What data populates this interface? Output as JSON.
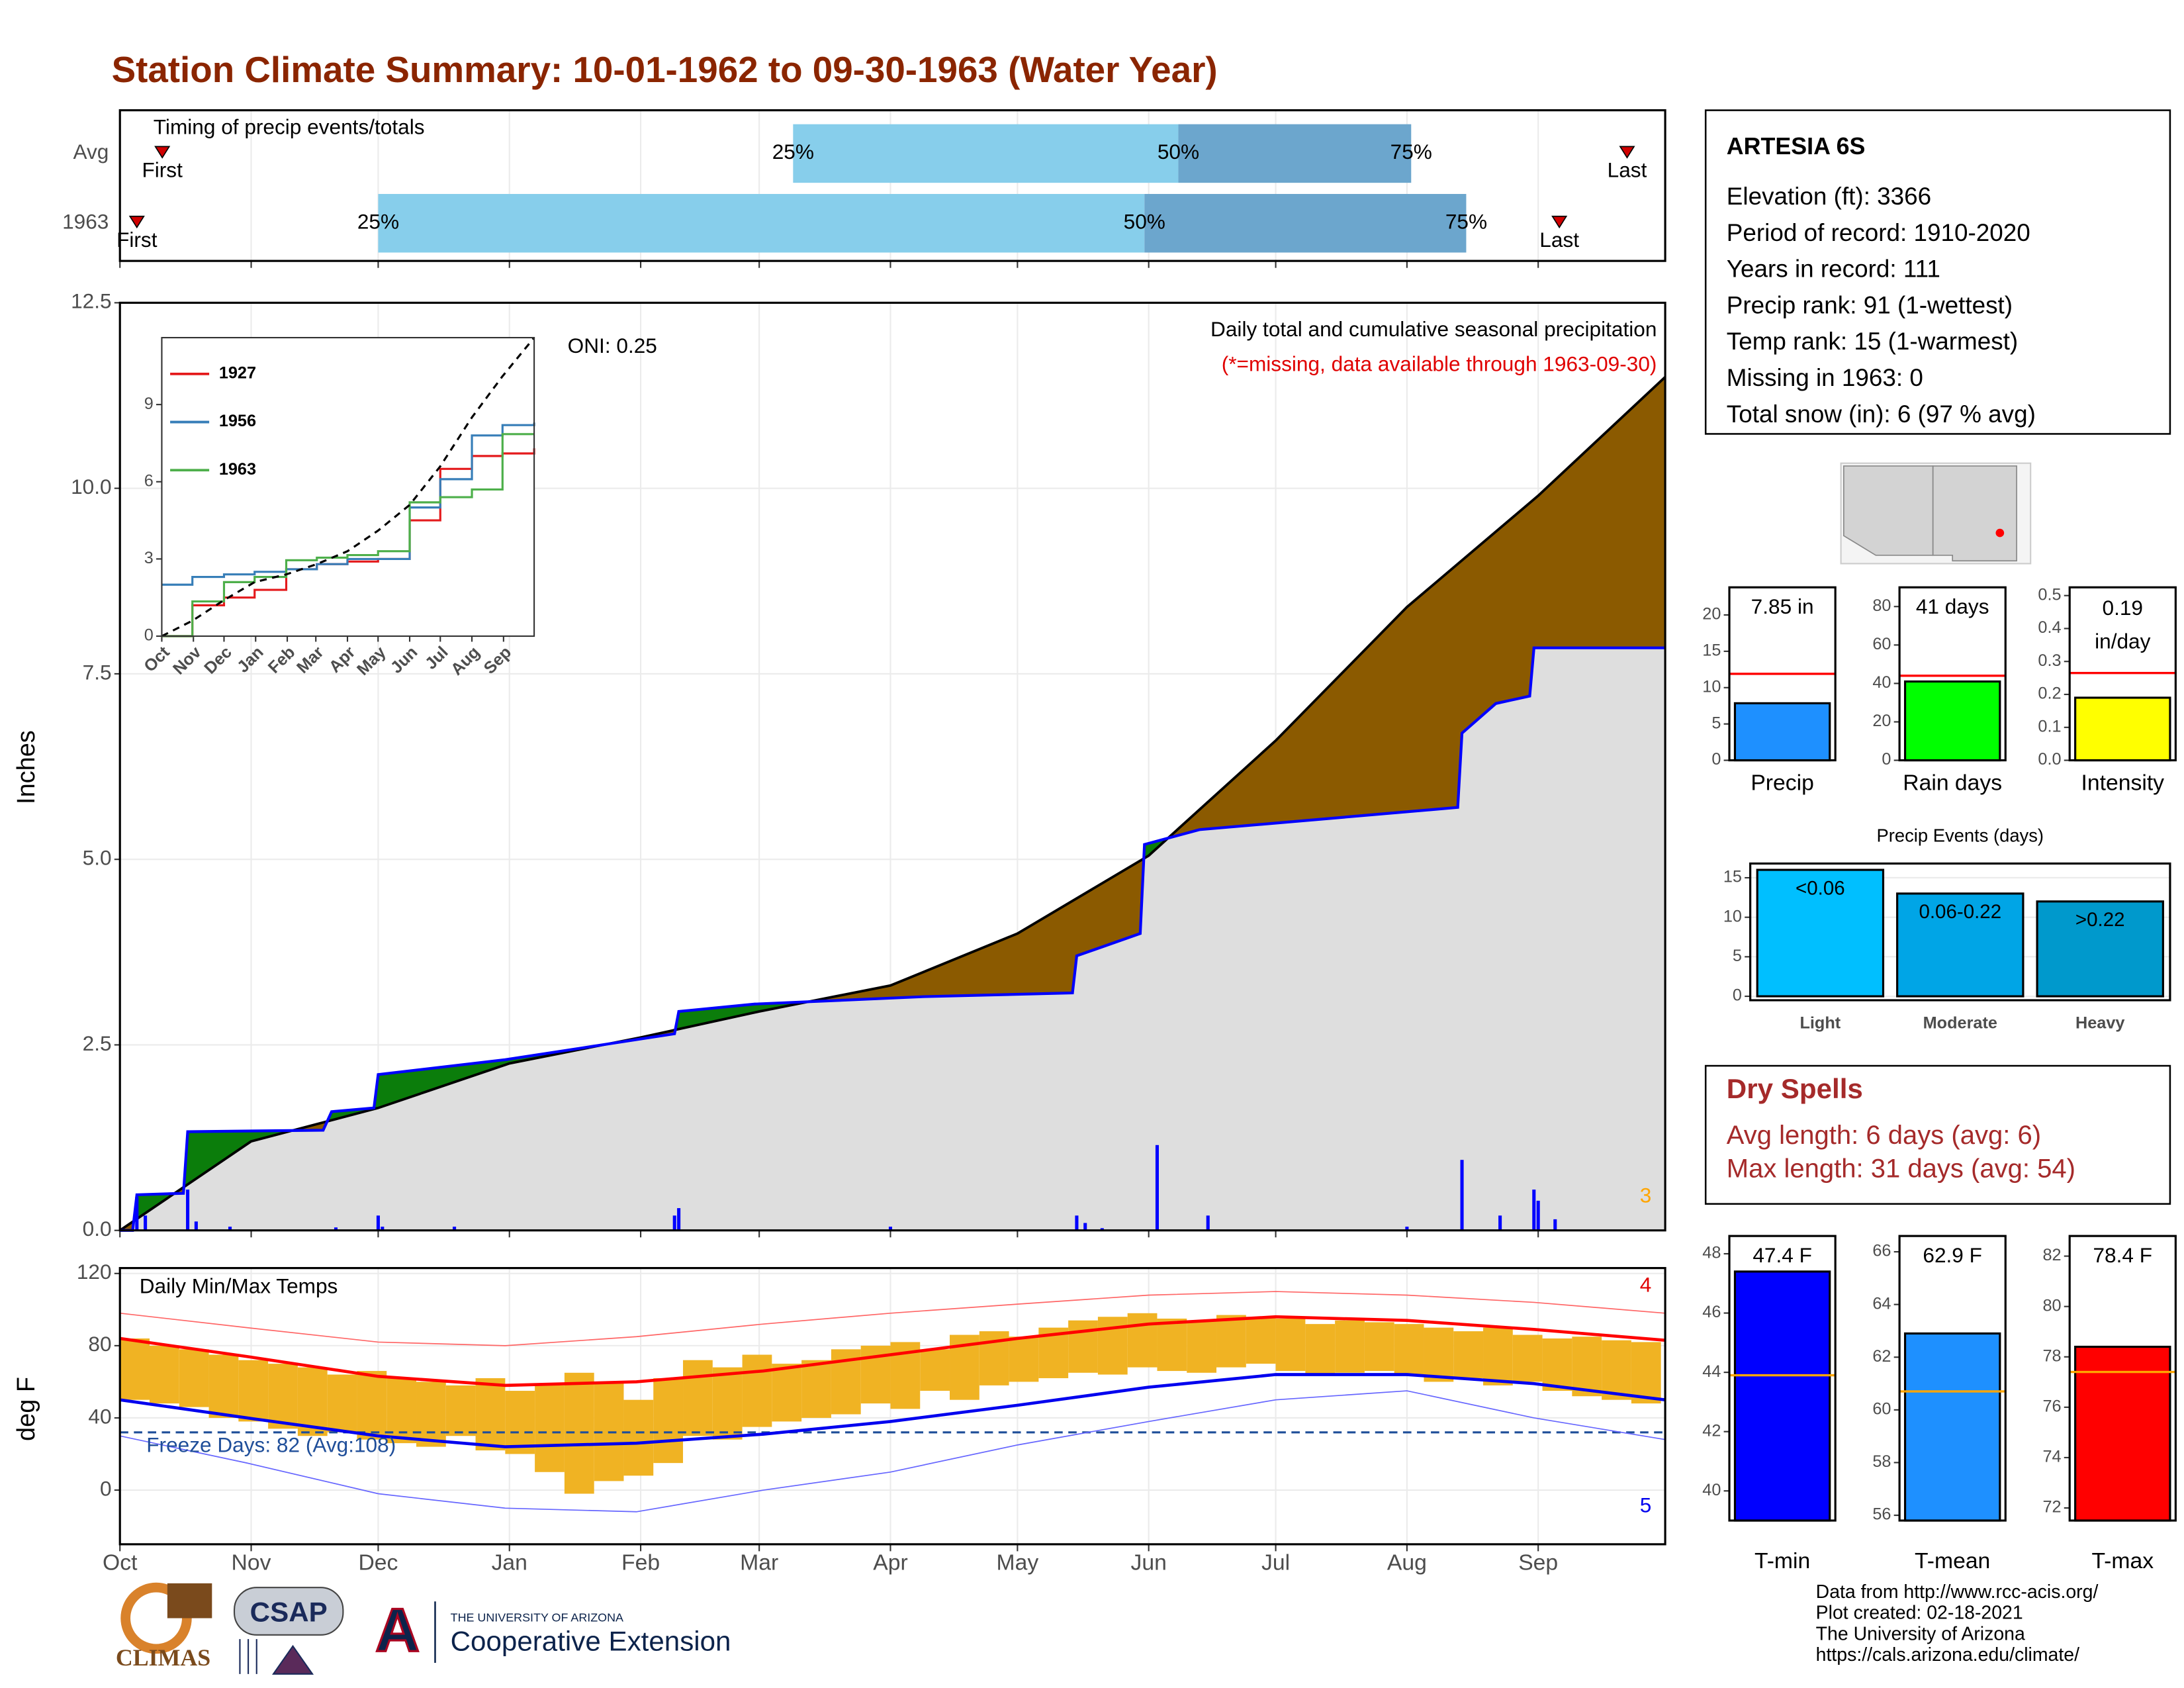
{
  "title": "Station Climate Summary: 10-01-1962 to 09-30-1963 (Water Year)",
  "station": {
    "name": "ARTESIA 6S",
    "lines": [
      "Elevation (ft): 3366",
      "Period of record: 1910-2020",
      "Years in record: 111",
      "Precip rank: 91 (1-wettest)",
      "Temp rank: 15 (1-warmest)",
      "Missing in 1963: 0",
      "Total snow (in): 6 (97 % avg)"
    ]
  },
  "dry_spells": {
    "title": "Dry Spells",
    "lines": [
      "Avg length: 6 days (avg: 6)",
      "Max length: 31 days (avg: 54)"
    ]
  },
  "footer": {
    "logos": [
      "CLIMAS",
      "CSAP",
      "A",
      "THE UNIVERSITY OF ARIZONA",
      "Cooperative Extension"
    ],
    "credits": [
      "Data from http://www.rcc-acis.org/",
      "Plot created: 02-18-2021",
      "The University of Arizona",
      "https://cals.arizona.edu/climate/"
    ]
  },
  "chart_data": [
    {
      "type": "timing",
      "title": "Timing of precip events/totals",
      "xlim": [
        0,
        365
      ],
      "grid": true,
      "colors": [
        "#87ceeb",
        "#6ca6cd"
      ],
      "marker_labels": {
        "first": "First",
        "last": "Last",
        "q25": "25%",
        "q50": "50%",
        "q75": "75%"
      },
      "rows": [
        {
          "label": "Avg",
          "first": 10,
          "q25": 159,
          "q50": 250,
          "q75": 305,
          "last": 356
        },
        {
          "label": "1963",
          "first": 4,
          "q25": 61,
          "q50": 242,
          "q75": 318,
          "last": 340
        }
      ]
    },
    {
      "type": "cumulative",
      "title": "Daily total and cumulative seasonal precipitation",
      "subtitle": "(*=missing, data available through 1963-09-30)",
      "annotations": [
        "ONI: 0.25",
        "3"
      ],
      "ylabel": "Inches",
      "xlim": [
        0,
        365
      ],
      "ylim": [
        0,
        12.5
      ],
      "yticks": [
        {
          "value": 0,
          "label": "0.0"
        },
        {
          "value": 2.5,
          "label": "2.5"
        },
        {
          "value": 5,
          "label": "5.0"
        },
        {
          "value": 7.5,
          "label": "7.5"
        },
        {
          "value": 10,
          "label": "10.0"
        },
        {
          "value": 12.5,
          "label": "12.5"
        }
      ],
      "grid": true,
      "fill_colors": {
        "above": "#0b7d0b",
        "below": "#8b5a00",
        "base": "#dedede"
      },
      "series": [
        {
          "color": "#000000",
          "x": [
            0,
            31,
            61,
            92,
            123,
            151,
            182,
            212,
            243,
            273,
            304,
            335,
            365
          ],
          "values": [
            0,
            1.2,
            1.65,
            2.25,
            2.6,
            2.95,
            3.3,
            4.0,
            5.05,
            6.6,
            8.4,
            9.9,
            11.5
          ]
        },
        {
          "color": "#0000ff",
          "x": [
            0,
            3,
            4,
            15,
            16,
            48,
            50,
            60,
            61,
            91,
            131,
            132,
            150,
            190,
            225,
            226,
            241,
            242,
            255,
            316,
            317,
            325,
            333,
            334,
            365
          ],
          "values": [
            0,
            0,
            0.48,
            0.5,
            1.33,
            1.35,
            1.6,
            1.65,
            2.1,
            2.3,
            2.65,
            2.95,
            3.05,
            3.15,
            3.2,
            3.7,
            4.0,
            5.2,
            5.4,
            5.7,
            6.7,
            7.1,
            7.2,
            7.85,
            7.85
          ]
        },
        {
          "color": "#0000ff",
          "x": [
            4,
            6,
            16,
            18,
            26,
            51,
            61,
            62,
            79,
            131,
            132,
            182,
            226,
            228,
            232,
            245,
            257,
            304,
            317,
            326,
            334,
            335,
            339
          ],
          "values": [
            0.45,
            0.2,
            0.55,
            0.12,
            0.05,
            0.04,
            0.2,
            0.05,
            0.05,
            0.2,
            0.3,
            0.05,
            0.2,
            0.1,
            0.03,
            1.15,
            0.2,
            0.05,
            0.95,
            0.2,
            0.55,
            0.4,
            0.15
          ]
        }
      ]
    },
    {
      "type": "line",
      "xlim": [
        0,
        365
      ],
      "ylim": [
        0,
        11.6
      ],
      "yticks": [
        0,
        3,
        6,
        9
      ],
      "xticks": [
        {
          "value": 0,
          "label": "Oct"
        },
        {
          "value": 31,
          "label": "Nov"
        },
        {
          "value": 61,
          "label": "Dec"
        },
        {
          "value": 92,
          "label": "Jan"
        },
        {
          "value": 123,
          "label": "Feb"
        },
        {
          "value": 151,
          "label": "Mar"
        },
        {
          "value": 182,
          "label": "Apr"
        },
        {
          "value": 212,
          "label": "May"
        },
        {
          "value": 243,
          "label": "Jun"
        },
        {
          "value": 273,
          "label": "Jul"
        },
        {
          "value": 304,
          "label": "Aug"
        },
        {
          "value": 335,
          "label": "Sep"
        }
      ],
      "x": [
        0,
        30,
        61,
        91,
        122,
        152,
        182,
        212,
        243,
        273,
        304,
        334,
        365
      ],
      "series": [
        {
          "name": "1927",
          "color": "#e41a1c",
          "values": [
            0,
            1.2,
            1.5,
            1.8,
            2.6,
            2.8,
            2.9,
            3.0,
            4.5,
            6.5,
            7.0,
            7.1,
            7.3
          ]
        },
        {
          "name": "1956",
          "color": "#377eb8",
          "values": [
            2.0,
            2.3,
            2.4,
            2.5,
            2.6,
            2.8,
            3.0,
            3.0,
            5.0,
            6.1,
            7.8,
            8.2,
            8.3
          ]
        },
        {
          "name": "1963",
          "color": "#4daf4a",
          "values": [
            0,
            1.35,
            2.1,
            2.3,
            2.95,
            3.05,
            3.15,
            3.3,
            5.2,
            5.4,
            5.7,
            7.85,
            7.85
          ]
        },
        {
          "color": "#000000",
          "dashed": true,
          "values": [
            0,
            0.6,
            1.4,
            2.1,
            2.4,
            2.8,
            3.3,
            4.1,
            5.1,
            6.6,
            8.5,
            10.1,
            11.6
          ]
        }
      ]
    },
    {
      "type": "temperature",
      "title": "Daily Min/Max Temps",
      "annotations": [
        "4",
        "5"
      ],
      "ylabel": "deg F",
      "xlim": [
        0,
        365
      ],
      "ylim": [
        -30,
        123
      ],
      "yticks": [
        0,
        40,
        80,
        120
      ],
      "grid": true,
      "xticks": [
        {
          "value": 0,
          "label": "Oct"
        },
        {
          "value": 31,
          "label": "Nov"
        },
        {
          "value": 61,
          "label": "Dec"
        },
        {
          "value": 92,
          "label": "Jan"
        },
        {
          "value": 123,
          "label": "Feb"
        },
        {
          "value": 151,
          "label": "Mar"
        },
        {
          "value": 182,
          "label": "Apr"
        },
        {
          "value": 212,
          "label": "May"
        },
        {
          "value": 243,
          "label": "Jun"
        },
        {
          "value": 273,
          "label": "Jul"
        },
        {
          "value": 304,
          "label": "Aug"
        },
        {
          "value": 335,
          "label": "Sep"
        }
      ],
      "freeze": {
        "label": "Freeze Days: 82 (Avg:108)",
        "value": 32,
        "color": "#1f4e99"
      },
      "daily": {
        "color": "#f0b323",
        "width": 7,
        "x": [
          0,
          7,
          14,
          21,
          28,
          35,
          42,
          49,
          56,
          63,
          70,
          77,
          84,
          91,
          98,
          105,
          112,
          119,
          126,
          133,
          140,
          147,
          154,
          161,
          168,
          175,
          182,
          189,
          196,
          203,
          210,
          217,
          224,
          231,
          238,
          245,
          252,
          259,
          266,
          273,
          280,
          287,
          294,
          301,
          308,
          315,
          322,
          329,
          336,
          343,
          350,
          357
        ],
        "max": [
          84,
          80,
          78,
          75,
          72,
          70,
          68,
          64,
          66,
          62,
          60,
          58,
          62,
          55,
          58,
          65,
          60,
          50,
          62,
          72,
          68,
          75,
          70,
          72,
          78,
          80,
          82,
          78,
          86,
          88,
          85,
          90,
          94,
          96,
          98,
          95,
          94,
          97,
          96,
          95,
          92,
          94,
          93,
          92,
          90,
          88,
          90,
          86,
          84,
          85,
          83,
          82
        ],
        "min": [
          50,
          48,
          46,
          40,
          38,
          34,
          30,
          32,
          28,
          26,
          24,
          30,
          22,
          20,
          10,
          -2,
          5,
          8,
          15,
          30,
          28,
          35,
          38,
          40,
          42,
          48,
          45,
          55,
          50,
          58,
          60,
          62,
          65,
          64,
          68,
          66,
          65,
          68,
          70,
          66,
          64,
          65,
          66,
          64,
          60,
          62,
          58,
          60,
          55,
          52,
          50,
          48
        ]
      },
      "x": [
        0,
        30,
        61,
        91,
        122,
        152,
        182,
        212,
        243,
        273,
        304,
        334,
        365
      ],
      "series": [
        {
          "kind": "average",
          "color": "#ff0000",
          "values": [
            84,
            74,
            63,
            58,
            60,
            66,
            75,
            84,
            92,
            96,
            94,
            89,
            83
          ]
        },
        {
          "kind": "average",
          "color": "#0000ee",
          "values": [
            50,
            40,
            30,
            24,
            26,
            31,
            38,
            47,
            57,
            64,
            64,
            59,
            50
          ]
        },
        {
          "kind": "record",
          "color": "#ff6666",
          "values": [
            98,
            90,
            82,
            80,
            85,
            92,
            98,
            103,
            108,
            110,
            108,
            104,
            98
          ]
        },
        {
          "kind": "record",
          "color": "#6666ff",
          "values": [
            30,
            15,
            -2,
            -10,
            -12,
            0,
            10,
            25,
            38,
            50,
            55,
            40,
            28
          ]
        }
      ]
    },
    {
      "type": "single_bar",
      "xlabel": "Precip",
      "values": [
        7.85
      ],
      "value_labels": [
        "7.85 in"
      ],
      "average": 11.9,
      "color": "#1e90ff",
      "avg_color": "#ff0000",
      "ylim": [
        0,
        23.8
      ],
      "yticks": [
        0,
        5,
        10,
        15,
        20
      ]
    },
    {
      "type": "single_bar",
      "xlabel": "Rain days",
      "values": [
        41
      ],
      "value_labels": [
        "41 days"
      ],
      "average": 44,
      "color": "#00ff00",
      "avg_color": "#ff0000",
      "ylim": [
        0,
        90
      ],
      "yticks": [
        0,
        20,
        40,
        60,
        80
      ]
    },
    {
      "type": "single_bar",
      "xlabel": "Intensity",
      "values": [
        0.19
      ],
      "value_labels": [
        "0.19 in/day"
      ],
      "average": 0.265,
      "color": "#ffff00",
      "avg_color": "#ff0000",
      "ylim": [
        0,
        0.525
      ],
      "yticks": [
        {
          "value": 0,
          "label": "0.0"
        },
        0.1,
        0.2,
        0.3,
        0.4,
        0.5
      ]
    },
    {
      "type": "bar",
      "title": "Precip Events (days)",
      "categories": [
        "Light",
        "Moderate",
        "Heavy"
      ],
      "values": [
        16,
        13,
        12
      ],
      "value_labels": [
        "<0.06",
        "0.06-0.22",
        ">0.22"
      ],
      "colors": [
        "#00bfff",
        "#00a5e6",
        "#0099cc"
      ],
      "ylim": [
        -0.5,
        16.8
      ],
      "yticks": [
        0,
        5,
        10,
        15
      ],
      "grid": true
    },
    {
      "type": "single_bar",
      "xlabel": "T-min",
      "values": [
        47.4
      ],
      "value_labels": [
        "47.4 F"
      ],
      "average": 43.9,
      "color": "#0000ff",
      "avg_color": "#ffa500",
      "ylim": [
        39,
        48.6
      ],
      "yticks": [
        40,
        42,
        44,
        46,
        48
      ]
    },
    {
      "type": "single_bar",
      "xlabel": "T-mean",
      "values": [
        62.9
      ],
      "value_labels": [
        "62.9 F"
      ],
      "average": 60.7,
      "color": "#1e90ff",
      "avg_color": "#ffa500",
      "ylim": [
        55.8,
        66.6
      ],
      "yticks": [
        56,
        58,
        60,
        62,
        64,
        66
      ]
    },
    {
      "type": "single_bar",
      "xlabel": "T-max",
      "values": [
        78.4
      ],
      "value_labels": [
        "78.4 F"
      ],
      "average": 77.4,
      "color": "#ff0000",
      "avg_color": "#ffa500",
      "ylim": [
        71.5,
        82.8
      ],
      "yticks": [
        72,
        74,
        76,
        78,
        80,
        82
      ]
    }
  ]
}
